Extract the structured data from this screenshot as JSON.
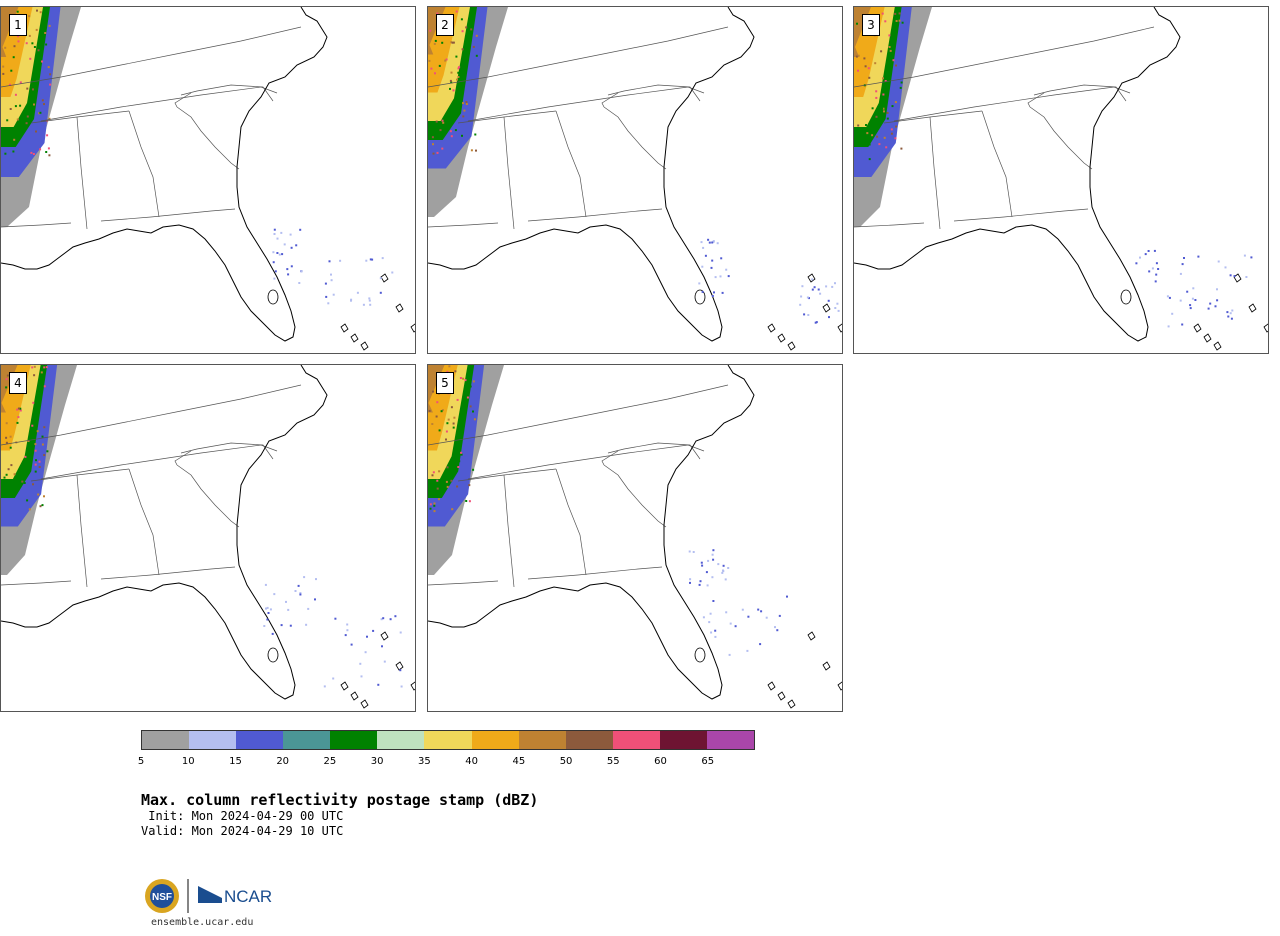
{
  "panels": [
    {
      "label": "1"
    },
    {
      "label": "2"
    },
    {
      "label": "3"
    },
    {
      "label": "4"
    },
    {
      "label": "5"
    }
  ],
  "colorbar": {
    "colors": [
      "#a0a0a0",
      "#b4bef0",
      "#505ad2",
      "#4b9696",
      "#008200",
      "#bee1be",
      "#f0d75a",
      "#f0aa19",
      "#be8232",
      "#8c5a3c",
      "#f05078",
      "#6e1432",
      "#aa46aa"
    ],
    "ticks": [
      "5",
      "10",
      "15",
      "20",
      "25",
      "30",
      "35",
      "40",
      "45",
      "50",
      "55",
      "60",
      "65"
    ]
  },
  "title": "Max. column reflectivity postage stamp (dBZ)",
  "init": " Init: Mon 2024-04-29 00 UTC",
  "valid": "Valid: Mon 2024-04-29 10 UTC",
  "footer": {
    "nsf_logo_text": "NSF",
    "ncar_logo_text": "NCAR",
    "url": "ensemble.ucar.edu"
  }
}
